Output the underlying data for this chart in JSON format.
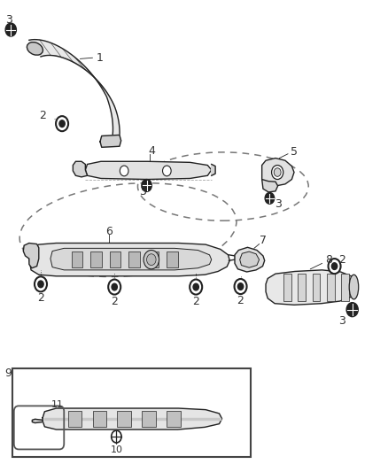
{
  "bg_color": "#ffffff",
  "fig_width": 4.38,
  "fig_height": 5.33,
  "dpi": 100,
  "line_color": "#222222",
  "label_color": "#333333",
  "font_size": 9
}
